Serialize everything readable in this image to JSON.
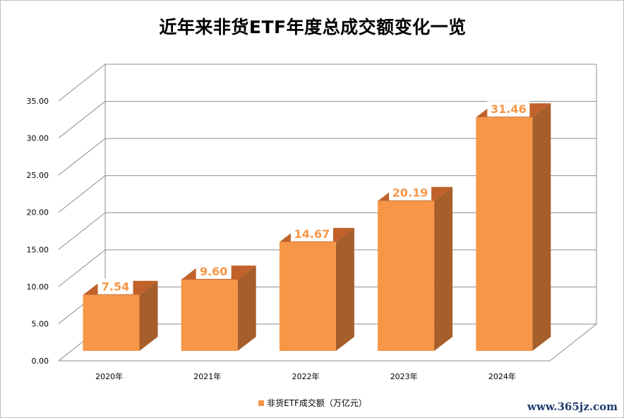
{
  "chart_data": {
    "type": "bar",
    "title": "近年来非货ETF年度总成交额变化一览",
    "categories": [
      "2020年",
      "2021年",
      "2022年",
      "2023年",
      "2024年"
    ],
    "series": [
      {
        "name": "非货ETF成交额（万亿元）",
        "values": [
          7.54,
          9.6,
          14.67,
          20.19,
          31.46
        ]
      }
    ],
    "data_labels": [
      "7.54",
      "9.60",
      "14.67",
      "20.19",
      "31.46"
    ],
    "yticks": [
      "0.00",
      "5.00",
      "10.00",
      "15.00",
      "20.00",
      "25.00",
      "30.00",
      "35.00"
    ],
    "ylim": [
      0,
      35
    ],
    "grid": true,
    "three_d": true,
    "legend_position": "bottom",
    "colors": {
      "bar_front": "#f79646",
      "bar_side": "#a65e2a",
      "bar_top": "#c0622a",
      "label_box": "#ffffff",
      "grid": "#8c8c8c"
    }
  },
  "watermark": "www.365jz.com"
}
